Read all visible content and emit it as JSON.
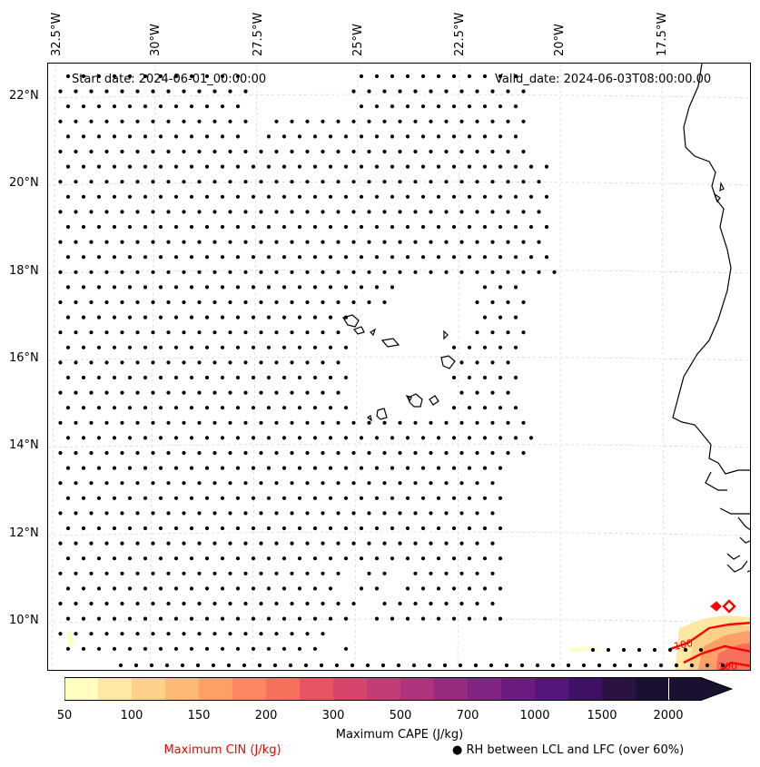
{
  "map": {
    "start_date": "Start date: 2024-06-01_00:00:00",
    "valid_date": "Valid_date: 2024-06-03T08:00:00.00",
    "lon_labels": [
      "32.5°W",
      "30°W",
      "27.5°W",
      "25°W",
      "22.5°W",
      "20°W",
      "17.5°W"
    ],
    "lat_labels": [
      "22°N",
      "20°N",
      "18°N",
      "16°N",
      "14°N",
      "12°N",
      "10°N"
    ],
    "cin_contour_labels": [
      "100",
      "100"
    ],
    "dot_color": "#000000",
    "cin_color": "#ff0000"
  },
  "colorbar": {
    "title": "Maximum CAPE (J/kg)",
    "ticks": [
      "50",
      "100",
      "150",
      "200",
      "300",
      "500",
      "700",
      "1000",
      "1500",
      "2000"
    ],
    "colors": [
      "#fffdbf",
      "#fee8a3",
      "#fed18b",
      "#feb877",
      "#fda068",
      "#fb8761",
      "#f6705c",
      "#e95462",
      "#d8456c",
      "#c23c75",
      "#ad347c",
      "#962c80",
      "#802582",
      "#6a1c81",
      "#56147d",
      "#3e1164",
      "#2a1241",
      "#1a1130"
    ]
  },
  "legend": {
    "cin_label": "Maximum CIN (J/kg)",
    "rh_label": "RH between LCL and LFC (over 60%)",
    "rh_marker": "●"
  }
}
